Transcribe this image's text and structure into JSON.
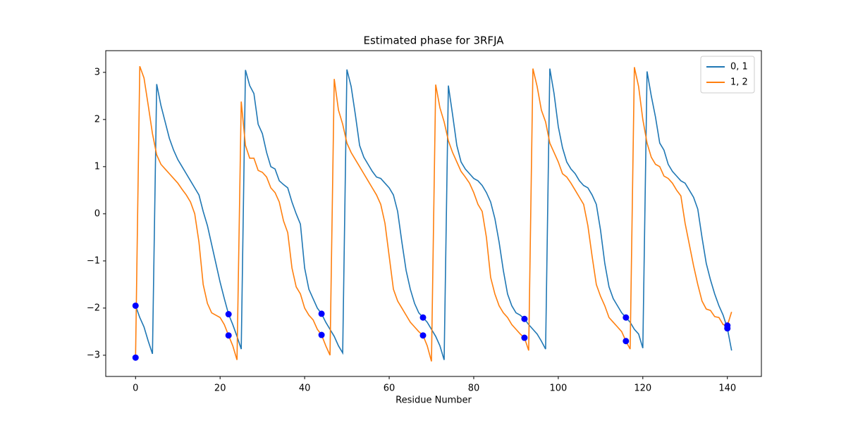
{
  "chart_data": {
    "type": "line",
    "title": "Estimated phase for 3RFJA",
    "xlabel": "Residue Number",
    "x": [
      0,
      1,
      2,
      3,
      4,
      5,
      6,
      7,
      8,
      9,
      10,
      11,
      12,
      13,
      14,
      15,
      16,
      17,
      18,
      19,
      20,
      21,
      22,
      23,
      24,
      25,
      26,
      27,
      28,
      29,
      30,
      31,
      32,
      33,
      34,
      35,
      36,
      37,
      38,
      39,
      40,
      41,
      42,
      43,
      44,
      45,
      46,
      47,
      48,
      49,
      50,
      51,
      52,
      53,
      54,
      55,
      56,
      57,
      58,
      59,
      60,
      61,
      62,
      63,
      64,
      65,
      66,
      67,
      68,
      69,
      70,
      71,
      72,
      73,
      74,
      75,
      76,
      77,
      78,
      79,
      80,
      81,
      82,
      83,
      84,
      85,
      86,
      87,
      88,
      89,
      90,
      91,
      92,
      93,
      94,
      95,
      96,
      97,
      98,
      99,
      100,
      101,
      102,
      103,
      104,
      105,
      106,
      107,
      108,
      109,
      110,
      111,
      112,
      113,
      114,
      115,
      116,
      117,
      118,
      119,
      120,
      121,
      122,
      123,
      124,
      125,
      126,
      127,
      128,
      129,
      130,
      131,
      132,
      133,
      134,
      135,
      136,
      137,
      138,
      139,
      140,
      141
    ],
    "series": [
      {
        "name": "0, 1",
        "color": "#1f77b4",
        "values": [
          -1.95,
          -2.2,
          -2.4,
          -2.7,
          -2.97,
          2.75,
          2.3,
          1.95,
          1.6,
          1.35,
          1.15,
          1.0,
          0.85,
          0.7,
          0.55,
          0.4,
          0.05,
          -0.25,
          -0.65,
          -1.05,
          -1.45,
          -1.8,
          -2.13,
          -2.35,
          -2.6,
          -2.87,
          3.05,
          2.72,
          2.55,
          1.9,
          1.7,
          1.3,
          1.0,
          0.95,
          0.7,
          0.62,
          0.55,
          0.25,
          0.0,
          -0.22,
          -1.15,
          -1.6,
          -1.8,
          -2.0,
          -2.12,
          -2.3,
          -2.45,
          -2.6,
          -2.8,
          -2.95,
          3.06,
          2.7,
          2.1,
          1.45,
          1.2,
          1.05,
          0.9,
          0.78,
          0.75,
          0.65,
          0.55,
          0.4,
          0.05,
          -0.6,
          -1.2,
          -1.6,
          -1.9,
          -2.1,
          -2.2,
          -2.3,
          -2.45,
          -2.6,
          -2.8,
          -3.1,
          2.72,
          2.1,
          1.45,
          1.1,
          0.95,
          0.85,
          0.75,
          0.7,
          0.6,
          0.45,
          0.25,
          -0.1,
          -0.6,
          -1.2,
          -1.7,
          -1.95,
          -2.1,
          -2.15,
          -2.23,
          -2.35,
          -2.45,
          -2.55,
          -2.7,
          -2.87,
          3.08,
          2.55,
          1.85,
          1.4,
          1.1,
          0.95,
          0.85,
          0.7,
          0.6,
          0.55,
          0.4,
          0.2,
          -0.35,
          -1.05,
          -1.55,
          -1.8,
          -1.95,
          -2.1,
          -2.2,
          -2.3,
          -2.45,
          -2.55,
          -2.85,
          3.02,
          2.5,
          2.05,
          1.5,
          1.35,
          1.05,
          0.9,
          0.8,
          0.7,
          0.65,
          0.5,
          0.35,
          0.1,
          -0.5,
          -1.05,
          -1.4,
          -1.7,
          -1.95,
          -2.15,
          -2.43,
          -2.9
        ]
      },
      {
        "name": "1, 2",
        "color": "#ff7f0e",
        "values": [
          -3.05,
          3.13,
          2.88,
          2.3,
          1.7,
          1.25,
          1.05,
          0.95,
          0.85,
          0.75,
          0.65,
          0.52,
          0.4,
          0.25,
          0.0,
          -0.6,
          -1.5,
          -1.9,
          -2.1,
          -2.15,
          -2.2,
          -2.35,
          -2.58,
          -2.8,
          -3.1,
          2.38,
          1.45,
          1.18,
          1.18,
          0.92,
          0.88,
          0.78,
          0.55,
          0.45,
          0.25,
          -0.15,
          -0.4,
          -1.15,
          -1.55,
          -1.7,
          -2.0,
          -2.15,
          -2.25,
          -2.45,
          -2.57,
          -2.8,
          -3.0,
          2.86,
          2.2,
          1.9,
          1.5,
          1.3,
          1.15,
          1.0,
          0.85,
          0.7,
          0.55,
          0.4,
          0.2,
          -0.2,
          -0.9,
          -1.6,
          -1.85,
          -2.0,
          -2.15,
          -2.3,
          -2.4,
          -2.5,
          -2.58,
          -2.8,
          -3.13,
          2.74,
          2.25,
          1.95,
          1.55,
          1.3,
          1.1,
          0.9,
          0.78,
          0.65,
          0.45,
          0.2,
          0.05,
          -0.5,
          -1.35,
          -1.7,
          -1.95,
          -2.1,
          -2.2,
          -2.35,
          -2.45,
          -2.55,
          -2.63,
          -2.9,
          3.08,
          2.7,
          2.2,
          1.95,
          1.5,
          1.3,
          1.1,
          0.85,
          0.78,
          0.65,
          0.5,
          0.35,
          0.2,
          -0.25,
          -0.9,
          -1.5,
          -1.75,
          -1.95,
          -2.2,
          -2.3,
          -2.4,
          -2.5,
          -2.7,
          -2.87,
          3.11,
          2.7,
          2.0,
          1.5,
          1.2,
          1.05,
          1.0,
          0.8,
          0.75,
          0.65,
          0.5,
          0.38,
          -0.2,
          -0.65,
          -1.1,
          -1.5,
          -1.85,
          -2.02,
          -2.05,
          -2.18,
          -2.2,
          -2.35,
          -2.37,
          -2.08
        ]
      }
    ],
    "markers": {
      "color": "#0000ff",
      "x": [
        0,
        0,
        22,
        22,
        44,
        44,
        68,
        68,
        92,
        92,
        116,
        116,
        140,
        140
      ],
      "y": [
        -1.95,
        -3.05,
        -2.13,
        -2.58,
        -2.12,
        -2.57,
        -2.2,
        -2.58,
        -2.23,
        -2.63,
        -2.2,
        -2.7,
        -2.37,
        -2.43
      ]
    },
    "xlim": [
      -7.05,
      148.05
    ],
    "ylim": [
      -3.45,
      3.46
    ],
    "xticks": [
      0,
      20,
      40,
      60,
      80,
      100,
      120,
      140
    ],
    "yticks": [
      {
        "value": -3,
        "label": "−3"
      },
      {
        "value": -2,
        "label": "−2"
      },
      {
        "value": -1,
        "label": "−1"
      },
      0,
      1,
      2,
      3
    ],
    "legend": "upper right"
  }
}
